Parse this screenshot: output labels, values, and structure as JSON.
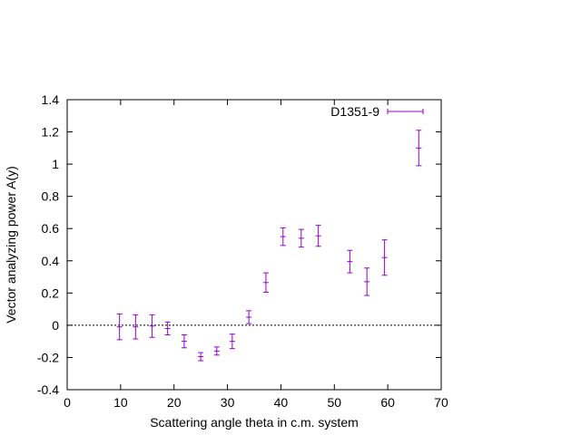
{
  "chart_data": {
    "type": "scatter",
    "title": "",
    "xlabel": "Scattering angle theta in c.m. system",
    "ylabel": "Vector analyzing power A(y)",
    "xlim": [
      0,
      70
    ],
    "ylim": [
      -0.4,
      1.4
    ],
    "xticks": [
      "0",
      "10",
      "20",
      "30",
      "40",
      "50",
      "60",
      "70"
    ],
    "yticks": [
      "-0.4",
      "-0.2",
      "0",
      "0.2",
      "0.4",
      "0.6",
      "0.8",
      "1",
      "1.2",
      "1.4"
    ],
    "grid": false,
    "legend_position": "top-right",
    "zero_line": true,
    "series": [
      {
        "name": "D1351-9",
        "color": "#9400d3",
        "points": [
          {
            "x": 9.8,
            "y": -0.01,
            "err": 0.08
          },
          {
            "x": 12.8,
            "y": -0.01,
            "err": 0.075
          },
          {
            "x": 15.9,
            "y": -0.005,
            "err": 0.07
          },
          {
            "x": 18.8,
            "y": -0.02,
            "err": 0.04
          },
          {
            "x": 21.9,
            "y": -0.1,
            "err": 0.04
          },
          {
            "x": 25.0,
            "y": -0.195,
            "err": 0.025
          },
          {
            "x": 28.0,
            "y": -0.16,
            "err": 0.025
          },
          {
            "x": 30.9,
            "y": -0.1,
            "err": 0.045
          },
          {
            "x": 34.0,
            "y": 0.05,
            "err": 0.04
          },
          {
            "x": 37.2,
            "y": 0.265,
            "err": 0.06
          },
          {
            "x": 40.4,
            "y": 0.55,
            "err": 0.055
          },
          {
            "x": 43.8,
            "y": 0.54,
            "err": 0.055
          },
          {
            "x": 47.0,
            "y": 0.555,
            "err": 0.065
          },
          {
            "x": 52.9,
            "y": 0.395,
            "err": 0.07
          },
          {
            "x": 56.1,
            "y": 0.27,
            "err": 0.085
          },
          {
            "x": 59.4,
            "y": 0.42,
            "err": 0.11
          },
          {
            "x": 65.8,
            "y": 1.1,
            "err": 0.11
          }
        ]
      }
    ]
  }
}
